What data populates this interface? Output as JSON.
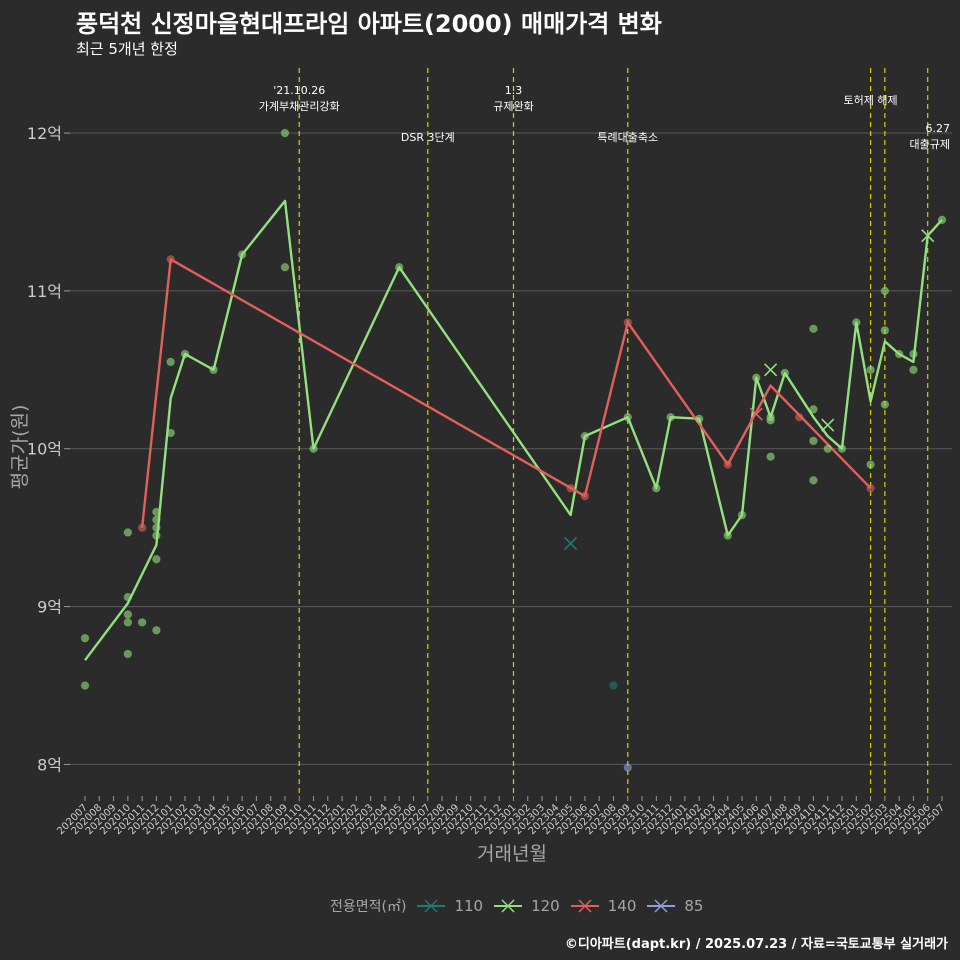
{
  "header": {
    "title": "풍덕천 신정마을현대프라임 아파트(2000) 매매가격 변화",
    "subtitle": "최근 5개년 한정"
  },
  "caption": "©디아파트(dapt.kr) / 2025.07.23 / 자료=국토교통부 실거래가",
  "legend": {
    "title": "전용면적(㎡)",
    "items": [
      {
        "label": "110",
        "color": "#1f7a74"
      },
      {
        "label": "120",
        "color": "#93e07f"
      },
      {
        "label": "140",
        "color": "#e0605c"
      },
      {
        "label": "85",
        "color": "#8aa0d6"
      }
    ]
  },
  "chart_data": {
    "type": "line",
    "title": "풍덕천 신정마을현대프라임 아파트(2000) 매매가격 변화",
    "subtitle": "최근 5개년 한정",
    "xlabel": "거래년월",
    "ylabel": "평균가(원)",
    "categories": [
      "202007",
      "202008",
      "202009",
      "202010",
      "202011",
      "202012",
      "202101",
      "202102",
      "202103",
      "202104",
      "202105",
      "202106",
      "202107",
      "202108",
      "202109",
      "202110",
      "202111",
      "202112",
      "202201",
      "202202",
      "202203",
      "202204",
      "202205",
      "202206",
      "202207",
      "202208",
      "202209",
      "202210",
      "202211",
      "202212",
      "202301",
      "202302",
      "202303",
      "202304",
      "202305",
      "202306",
      "202307",
      "202308",
      "202309",
      "202310",
      "202311",
      "202312",
      "202401",
      "202402",
      "202403",
      "202404",
      "202405",
      "202406",
      "202407",
      "202408",
      "202409",
      "202410",
      "202411",
      "202412",
      "202501",
      "202502",
      "202503",
      "202504",
      "202505",
      "202506",
      "202507"
    ],
    "ylim": [
      7.8,
      12.45
    ],
    "yticks": [
      {
        "value": 8,
        "label": "8억"
      },
      {
        "value": 9,
        "label": "9억"
      },
      {
        "value": 10,
        "label": "10억"
      },
      {
        "value": 11,
        "label": "11억"
      },
      {
        "value": 12,
        "label": "12억"
      }
    ],
    "grid": true,
    "legend_position": "bottom",
    "series": [
      {
        "name": "120",
        "color": "#93e07f",
        "points": [
          [
            "202007",
            8.66
          ],
          [
            "202010",
            9.02
          ],
          [
            "202012",
            9.39
          ],
          [
            "202101",
            10.32
          ],
          [
            "202102",
            10.6
          ],
          [
            "202104",
            10.5
          ],
          [
            "202106",
            11.23
          ],
          [
            "202109",
            11.57
          ],
          [
            "202111",
            10.0
          ],
          [
            "202205",
            11.15
          ],
          [
            "202305",
            9.58
          ],
          [
            "202306",
            10.08
          ],
          [
            "202309",
            10.2
          ],
          [
            "202311",
            9.75
          ],
          [
            "202312",
            10.2
          ],
          [
            "202402",
            10.19
          ],
          [
            "202404",
            9.45
          ],
          [
            "202405",
            9.58
          ],
          [
            "202406",
            10.45
          ],
          [
            "202407",
            10.2
          ],
          [
            "202408",
            10.48
          ],
          [
            "202410",
            10.2
          ],
          [
            "202411",
            10.08
          ],
          [
            "202412",
            10.0
          ],
          [
            "202501",
            10.8
          ],
          [
            "202502",
            10.3
          ],
          [
            "202503",
            10.68
          ],
          [
            "202504",
            10.6
          ],
          [
            "202505",
            10.55
          ],
          [
            "202506",
            11.35
          ],
          [
            "202507",
            11.45
          ]
        ]
      },
      {
        "name": "140",
        "color": "#e0605c",
        "points": [
          [
            "202011",
            9.5
          ],
          [
            "202101",
            11.2
          ],
          [
            "202306",
            9.7
          ],
          [
            "202309",
            10.8
          ],
          [
            "202404",
            9.9
          ],
          [
            "202407",
            10.4
          ],
          [
            "202502",
            9.75
          ]
        ]
      }
    ],
    "scatter": [
      {
        "series": "120",
        "x": "202007",
        "y": 8.8
      },
      {
        "series": "120",
        "x": "202007",
        "y": 8.5
      },
      {
        "series": "120",
        "x": "202010",
        "y": 9.47
      },
      {
        "series": "120",
        "x": "202010",
        "y": 9.06
      },
      {
        "series": "120",
        "x": "202010",
        "y": 8.95
      },
      {
        "series": "120",
        "x": "202010",
        "y": 8.9
      },
      {
        "series": "120",
        "x": "202010",
        "y": 8.7
      },
      {
        "series": "120",
        "x": "202011",
        "y": 8.9
      },
      {
        "series": "120",
        "x": "202012",
        "y": 9.6
      },
      {
        "series": "120",
        "x": "202012",
        "y": 9.55
      },
      {
        "series": "120",
        "x": "202012",
        "y": 9.5
      },
      {
        "series": "120",
        "x": "202012",
        "y": 9.45
      },
      {
        "series": "120",
        "x": "202012",
        "y": 9.3
      },
      {
        "series": "120",
        "x": "202012",
        "y": 8.85
      },
      {
        "series": "120",
        "x": "202101",
        "y": 10.55
      },
      {
        "series": "120",
        "x": "202101",
        "y": 10.1
      },
      {
        "series": "120",
        "x": "202102",
        "y": 10.6
      },
      {
        "series": "120",
        "x": "202104",
        "y": 10.5
      },
      {
        "series": "120",
        "x": "202106",
        "y": 11.23
      },
      {
        "series": "120",
        "x": "202109",
        "y": 12.0
      },
      {
        "series": "120",
        "x": "202109",
        "y": 11.15
      },
      {
        "series": "120",
        "x": "202111",
        "y": 10.0
      },
      {
        "series": "120",
        "x": "202205",
        "y": 11.15
      },
      {
        "series": "120",
        "x": "202306",
        "y": 10.08
      },
      {
        "series": "120",
        "x": "202309",
        "y": 10.2
      },
      {
        "series": "120",
        "x": "202311",
        "y": 9.75
      },
      {
        "series": "120",
        "x": "202312",
        "y": 10.2
      },
      {
        "series": "120",
        "x": "202402",
        "y": 10.19
      },
      {
        "series": "120",
        "x": "202404",
        "y": 9.45
      },
      {
        "series": "120",
        "x": "202405",
        "y": 9.58
      },
      {
        "series": "120",
        "x": "202406",
        "y": 10.45
      },
      {
        "series": "120",
        "x": "202407",
        "y": 10.2
      },
      {
        "series": "120",
        "x": "202407",
        "y": 10.18
      },
      {
        "series": "120",
        "x": "202407",
        "y": 9.95
      },
      {
        "series": "120",
        "x": "202408",
        "y": 10.48
      },
      {
        "series": "120",
        "x": "202410",
        "y": 10.76
      },
      {
        "series": "120",
        "x": "202410",
        "y": 10.25
      },
      {
        "series": "120",
        "x": "202410",
        "y": 10.05
      },
      {
        "series": "120",
        "x": "202410",
        "y": 9.8
      },
      {
        "series": "120",
        "x": "202411",
        "y": 10.0
      },
      {
        "series": "120",
        "x": "202412",
        "y": 10.0
      },
      {
        "series": "120",
        "x": "202501",
        "y": 10.8
      },
      {
        "series": "120",
        "x": "202502",
        "y": 10.5
      },
      {
        "series": "120",
        "x": "202502",
        "y": 9.9
      },
      {
        "series": "120",
        "x": "202503",
        "y": 11.0
      },
      {
        "series": "120",
        "x": "202503",
        "y": 10.75
      },
      {
        "series": "120",
        "x": "202503",
        "y": 10.28
      },
      {
        "series": "120",
        "x": "202504",
        "y": 10.6
      },
      {
        "series": "120",
        "x": "202505",
        "y": 10.6
      },
      {
        "series": "120",
        "x": "202505",
        "y": 10.5
      },
      {
        "series": "120",
        "x": "202507",
        "y": 11.45
      },
      {
        "series": "140",
        "x": "202011",
        "y": 9.5
      },
      {
        "series": "140",
        "x": "202101",
        "y": 11.2
      },
      {
        "series": "140",
        "x": "202305",
        "y": 9.75
      },
      {
        "series": "140",
        "x": "202306",
        "y": 9.7
      },
      {
        "series": "140",
        "x": "202309",
        "y": 10.8
      },
      {
        "series": "140",
        "x": "202404",
        "y": 9.9
      },
      {
        "series": "140",
        "x": "202409",
        "y": 10.2
      },
      {
        "series": "140",
        "x": "202502",
        "y": 9.75
      },
      {
        "series": "110",
        "x": "202308",
        "y": 8.5
      },
      {
        "series": "85",
        "x": "202309",
        "y": 7.98
      }
    ],
    "cross_markers": [
      {
        "series": "110",
        "x": "202305",
        "y": 9.4
      },
      {
        "series": "120",
        "x": "202407",
        "y": 10.5
      },
      {
        "series": "120",
        "x": "202411",
        "y": 10.15
      },
      {
        "series": "120",
        "x": "202506",
        "y": 11.35
      },
      {
        "series": "140",
        "x": "202406",
        "y": 10.22
      }
    ],
    "events": [
      {
        "x": "202110",
        "lines": [
          "'21.10.26",
          "가계부채관리강화"
        ],
        "row": "top"
      },
      {
        "x": "202207",
        "lines": [
          "DSR 3단계"
        ],
        "row": "low"
      },
      {
        "x": "202301",
        "lines": [
          "1.3",
          "규제완화"
        ],
        "row": "top"
      },
      {
        "x": "202309",
        "lines": [
          "특례대출축소"
        ],
        "row": "low"
      },
      {
        "x": "202502",
        "lines": [
          "토허제 해제"
        ],
        "row": "mid"
      },
      {
        "x": "202503",
        "lines": [],
        "row": "none"
      },
      {
        "x": "202506",
        "lines": [
          "6.27",
          "대출규제"
        ],
        "row": "right"
      }
    ]
  }
}
